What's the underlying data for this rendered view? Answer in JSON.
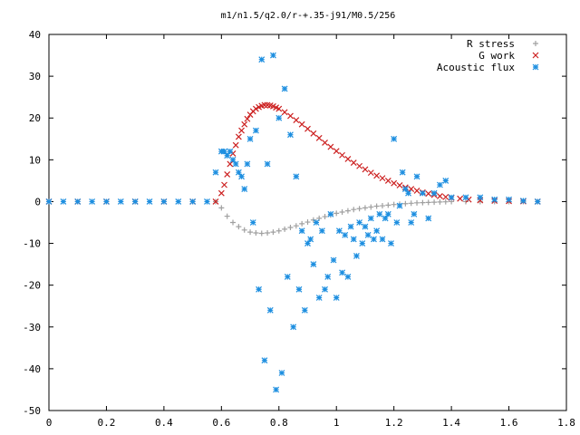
{
  "chart_data": {
    "type": "scatter",
    "title": "m1/n1.5/q2.0/r-+.35-j91/M0.5/256",
    "xlabel": "",
    "ylabel": "",
    "xlim": [
      0,
      1.8
    ],
    "ylim": [
      -50,
      40
    ],
    "x_ticks": [
      0,
      0.2,
      0.4,
      0.6,
      0.8,
      1,
      1.2,
      1.4,
      1.6,
      1.8
    ],
    "x_tick_labels": [
      "0",
      "0.2",
      "0.4",
      "0.6",
      "0.8",
      "1",
      "1.2",
      "1.4",
      "1.6",
      "1.8"
    ],
    "y_ticks": [
      -50,
      -40,
      -30,
      -20,
      -10,
      0,
      10,
      20,
      30,
      40
    ],
    "y_tick_labels": [
      "-50",
      "-40",
      "-30",
      "-20",
      "-10",
      "0",
      "10",
      "20",
      "30",
      "40"
    ],
    "grid": false,
    "legend_position": "top-right",
    "series": [
      {
        "name": "R stress",
        "marker": "plus",
        "color": "#a0a0a0",
        "x": [
          0,
          0.1,
          0.2,
          0.3,
          0.4,
          0.5,
          0.58,
          0.6,
          0.62,
          0.64,
          0.66,
          0.68,
          0.7,
          0.72,
          0.74,
          0.76,
          0.78,
          0.8,
          0.82,
          0.84,
          0.86,
          0.88,
          0.9,
          0.92,
          0.94,
          0.96,
          0.98,
          1.0,
          1.02,
          1.04,
          1.06,
          1.08,
          1.1,
          1.12,
          1.14,
          1.16,
          1.18,
          1.2,
          1.22,
          1.24,
          1.26,
          1.28,
          1.3,
          1.32,
          1.34,
          1.36,
          1.38,
          1.4,
          1.45,
          1.5,
          1.55,
          1.6,
          1.65,
          1.7
        ],
        "y": [
          0,
          0,
          0,
          0,
          0,
          0,
          0,
          -1.5,
          -3.5,
          -5,
          -6,
          -6.8,
          -7.3,
          -7.5,
          -7.6,
          -7.5,
          -7.3,
          -7.0,
          -6.6,
          -6.2,
          -5.8,
          -5.3,
          -4.9,
          -4.4,
          -4.0,
          -3.6,
          -3.2,
          -2.8,
          -2.5,
          -2.2,
          -1.9,
          -1.7,
          -1.5,
          -1.3,
          -1.1,
          -1.0,
          -0.85,
          -0.7,
          -0.6,
          -0.5,
          -0.4,
          -0.3,
          -0.25,
          -0.2,
          -0.15,
          -0.1,
          -0.05,
          0,
          0,
          0,
          0,
          0,
          0,
          0
        ]
      },
      {
        "name": "G work",
        "marker": "cross",
        "color": "#cc2020",
        "x": [
          0,
          0.1,
          0.2,
          0.3,
          0.4,
          0.5,
          0.58,
          0.6,
          0.61,
          0.62,
          0.63,
          0.64,
          0.65,
          0.66,
          0.67,
          0.68,
          0.69,
          0.7,
          0.71,
          0.72,
          0.73,
          0.74,
          0.75,
          0.76,
          0.77,
          0.78,
          0.79,
          0.8,
          0.82,
          0.84,
          0.86,
          0.88,
          0.9,
          0.92,
          0.94,
          0.96,
          0.98,
          1.0,
          1.02,
          1.04,
          1.06,
          1.08,
          1.1,
          1.12,
          1.14,
          1.16,
          1.18,
          1.2,
          1.22,
          1.24,
          1.26,
          1.28,
          1.3,
          1.32,
          1.34,
          1.36,
          1.38,
          1.4,
          1.43,
          1.46,
          1.5,
          1.55,
          1.6,
          1.65,
          1.7
        ],
        "y": [
          0,
          0,
          0,
          0,
          0,
          0,
          0,
          2,
          4,
          6.5,
          9,
          11.5,
          13.5,
          15.5,
          17,
          18.5,
          19.8,
          20.8,
          21.6,
          22.2,
          22.6,
          22.9,
          23.1,
          23.1,
          23.0,
          22.8,
          22.5,
          22.2,
          21.4,
          20.5,
          19.5,
          18.5,
          17.4,
          16.3,
          15.2,
          14.1,
          13.1,
          12.1,
          11.1,
          10.2,
          9.3,
          8.5,
          7.7,
          6.9,
          6.2,
          5.6,
          5.0,
          4.4,
          3.9,
          3.4,
          3.0,
          2.6,
          2.2,
          1.9,
          1.6,
          1.3,
          1.1,
          0.9,
          0.7,
          0.5,
          0.3,
          0.2,
          0.1,
          0.05,
          0
        ]
      },
      {
        "name": "Acoustic flux",
        "marker": "star",
        "color": "#1e8fe0",
        "x": [
          0,
          0.05,
          0.1,
          0.15,
          0.2,
          0.25,
          0.3,
          0.35,
          0.4,
          0.45,
          0.5,
          0.55,
          0.58,
          0.6,
          0.61,
          0.62,
          0.63,
          0.64,
          0.65,
          0.66,
          0.67,
          0.68,
          0.69,
          0.7,
          0.71,
          0.72,
          0.73,
          0.74,
          0.75,
          0.76,
          0.77,
          0.78,
          0.79,
          0.8,
          0.81,
          0.82,
          0.83,
          0.84,
          0.85,
          0.86,
          0.87,
          0.88,
          0.89,
          0.9,
          0.91,
          0.92,
          0.93,
          0.94,
          0.95,
          0.96,
          0.97,
          0.98,
          0.99,
          1.0,
          1.01,
          1.02,
          1.03,
          1.04,
          1.05,
          1.06,
          1.07,
          1.08,
          1.09,
          1.1,
          1.11,
          1.12,
          1.13,
          1.14,
          1.15,
          1.16,
          1.17,
          1.18,
          1.19,
          1.2,
          1.21,
          1.22,
          1.23,
          1.24,
          1.25,
          1.26,
          1.27,
          1.28,
          1.3,
          1.32,
          1.34,
          1.36,
          1.38,
          1.4,
          1.45,
          1.5,
          1.55,
          1.6,
          1.65,
          1.7
        ],
        "y": [
          0,
          0,
          0,
          0,
          0,
          0,
          0,
          0,
          0,
          0,
          0,
          0,
          7,
          12,
          12,
          11,
          12,
          10,
          9,
          7,
          6,
          3,
          9,
          15,
          -5,
          17,
          -21,
          34,
          -38,
          9,
          -26,
          35,
          -45,
          20,
          -41,
          27,
          -18,
          16,
          -30,
          6,
          -21,
          -7,
          -26,
          -10,
          -9,
          -15,
          -5,
          -23,
          -7,
          -21,
          -18,
          -3,
          -14,
          -23,
          -7,
          -17,
          -8,
          -18,
          -6,
          -9,
          -13,
          -5,
          -10,
          -6,
          -8,
          -4,
          -9,
          -7,
          -3,
          -9,
          -4,
          -3,
          -10,
          15,
          -5,
          -1,
          7,
          3,
          2,
          -5,
          -3,
          6,
          2,
          -4,
          2,
          4,
          5,
          1,
          1,
          1,
          0.5,
          0.5,
          0.2,
          0
        ]
      }
    ]
  }
}
